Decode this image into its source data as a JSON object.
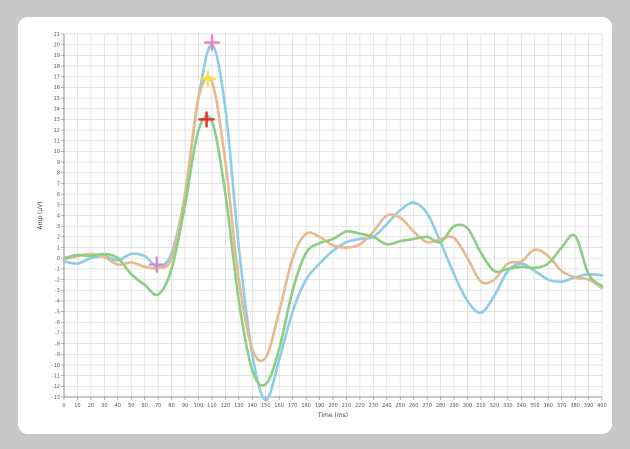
{
  "chart_data": {
    "type": "line",
    "title": "",
    "xlabel": "Time (ms)",
    "ylabel": "Amp (μV)",
    "xlim": [
      0,
      400
    ],
    "ylim": [
      -13,
      21
    ],
    "x_ticks": [
      0,
      10,
      20,
      30,
      40,
      50,
      60,
      70,
      80,
      90,
      100,
      110,
      120,
      130,
      140,
      150,
      160,
      170,
      180,
      190,
      200,
      210,
      220,
      230,
      240,
      250,
      260,
      270,
      280,
      290,
      300,
      310,
      320,
      330,
      340,
      350,
      360,
      370,
      380,
      390,
      400
    ],
    "y_ticks": [
      21,
      20,
      19,
      18,
      17,
      16,
      15,
      14,
      13,
      12,
      11,
      10,
      9,
      8,
      7,
      6,
      5,
      4,
      3,
      2,
      1,
      0,
      -1,
      -2,
      -3,
      -4,
      -5,
      -6,
      -7,
      -8,
      -9,
      -10,
      -11,
      -12,
      -13
    ],
    "grid": true,
    "series": [
      {
        "color": "#8ccde8",
        "x": [
          0,
          10,
          20,
          30,
          40,
          50,
          60,
          70,
          80,
          90,
          100,
          110,
          120,
          130,
          140,
          150,
          160,
          170,
          180,
          190,
          200,
          210,
          220,
          230,
          240,
          250,
          260,
          270,
          280,
          290,
          300,
          310,
          320,
          330,
          340,
          350,
          360,
          370,
          380,
          390,
          400
        ],
        "y": [
          -0.3,
          -0.5,
          0,
          0.2,
          -0.2,
          0.4,
          0.2,
          -0.8,
          0.5,
          6,
          15,
          20,
          14,
          1,
          -9,
          -13.3,
          -9.5,
          -5,
          -2,
          -0.5,
          0.7,
          1.5,
          1.8,
          2,
          3.2,
          4.5,
          5.2,
          4.2,
          1.5,
          -1.5,
          -4,
          -5.1,
          -3.5,
          -1.2,
          -0.5,
          -1.2,
          -2,
          -2.2,
          -1.8,
          -1.5,
          -1.6
        ]
      },
      {
        "color": "#e8b88e",
        "x": [
          0,
          10,
          20,
          30,
          40,
          50,
          60,
          70,
          80,
          90,
          100,
          110,
          120,
          130,
          140,
          150,
          160,
          170,
          180,
          190,
          200,
          210,
          220,
          230,
          240,
          250,
          260,
          270,
          280,
          290,
          300,
          310,
          320,
          330,
          340,
          350,
          360,
          370,
          380,
          390,
          400
        ],
        "y": [
          -0.1,
          0.2,
          0.4,
          0.1,
          -0.6,
          -0.4,
          -0.8,
          -0.9,
          0,
          6,
          15,
          16.5,
          9,
          -2,
          -8.5,
          -9.3,
          -5,
          0,
          2.3,
          2,
          1.2,
          1,
          1.3,
          2.5,
          4,
          3.8,
          2.5,
          1.5,
          1.8,
          1.9,
          0,
          -2.2,
          -2,
          -0.5,
          -0.3,
          0.8,
          0.2,
          -1.2,
          -1.8,
          -2,
          -2.8
        ]
      },
      {
        "color": "#8cce84",
        "x": [
          0,
          10,
          20,
          30,
          40,
          50,
          60,
          70,
          80,
          90,
          100,
          110,
          120,
          130,
          140,
          150,
          160,
          170,
          180,
          190,
          200,
          210,
          220,
          230,
          240,
          250,
          260,
          270,
          280,
          290,
          300,
          310,
          320,
          330,
          340,
          350,
          360,
          370,
          380,
          390,
          400
        ],
        "y": [
          0,
          0.3,
          0.2,
          0.4,
          0,
          -1.5,
          -2.5,
          -3.4,
          -1,
          5,
          12,
          12.8,
          6,
          -4,
          -10.5,
          -11.8,
          -8.5,
          -3,
          0.5,
          1.4,
          1.8,
          2.5,
          2.3,
          2,
          1.3,
          1.6,
          1.8,
          2,
          1.5,
          3,
          2.8,
          0.5,
          -1.2,
          -1,
          -0.8,
          -0.9,
          -0.5,
          1,
          2.1,
          -1.5,
          -2.6
        ]
      }
    ],
    "markers": [
      {
        "x": 69,
        "y": -0.6,
        "color": "#c98ed6"
      },
      {
        "x": 110,
        "y": 20.2,
        "color": "#f27cc2"
      },
      {
        "x": 107,
        "y": 16.8,
        "color": "#f7e23a"
      },
      {
        "x": 106,
        "y": 13,
        "color": "#e8262a"
      }
    ]
  }
}
